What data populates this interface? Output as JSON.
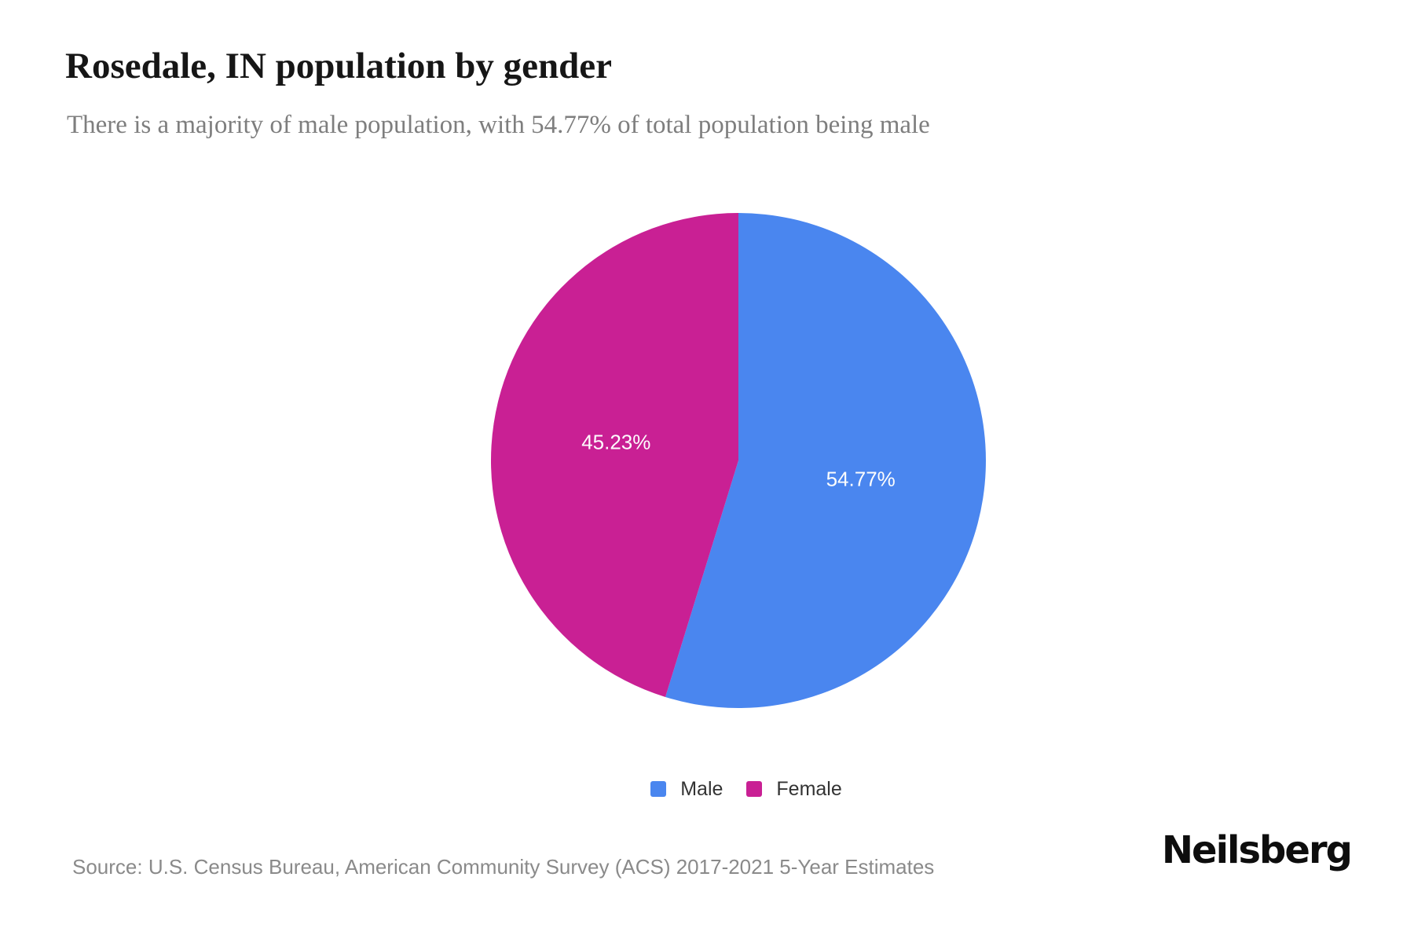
{
  "header": {
    "title": "Rosedale, IN population by gender",
    "subtitle": "There is a majority of male population, with 54.77% of total population being male"
  },
  "chart_data": {
    "type": "pie",
    "title": "Rosedale, IN population by gender",
    "unit": "%",
    "series": [
      {
        "name": "Male",
        "value": 54.77,
        "label": "54.77%",
        "color": "#4a86ef"
      },
      {
        "name": "Female",
        "value": 45.23,
        "label": "45.23%",
        "color": "#c92094"
      }
    ],
    "start_angle_deg": 0,
    "direction": "clockwise",
    "label_radius_ratio": 0.5,
    "label_color": "#ffffff",
    "legend_position": "bottom"
  },
  "legend": {
    "items": [
      {
        "label": "Male",
        "color": "#4a86ef"
      },
      {
        "label": "Female",
        "color": "#c92094"
      }
    ]
  },
  "footer": {
    "source": "Source: U.S. Census Bureau, American Community Survey (ACS) 2017-2021 5-Year Estimates",
    "brand": "Neilsberg"
  }
}
